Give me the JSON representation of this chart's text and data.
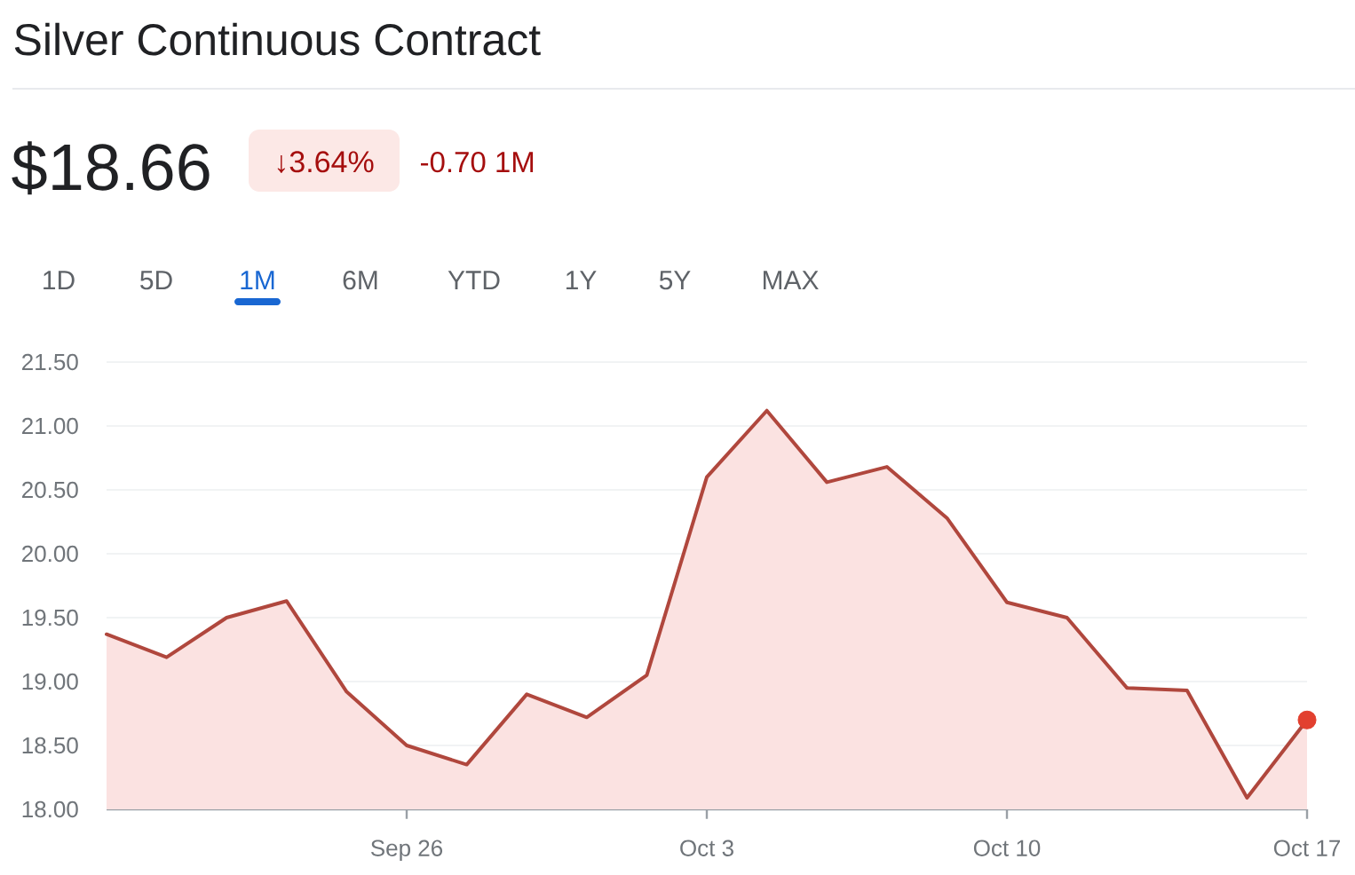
{
  "chart_data": {
    "type": "area",
    "title": "Silver Continuous Contract",
    "subtitle": "$18.66",
    "annotations": [
      "↓3.64%",
      "-0.70 1M",
      "1D",
      "5D",
      "1M",
      "6M",
      "YTD",
      "1Y",
      "5Y",
      "MAX"
    ],
    "categories": [
      null,
      null,
      null,
      null,
      null,
      "Sep 26",
      null,
      null,
      null,
      null,
      "Oct 3",
      null,
      null,
      null,
      null,
      "Oct 10",
      null,
      null,
      null,
      null,
      "Oct 17"
    ],
    "series": [
      {
        "color": "#b0473d",
        "values": [
          19.37,
          19.19,
          19.5,
          19.63,
          18.92,
          18.5,
          18.35,
          18.9,
          18.72,
          19.05,
          20.6,
          21.12,
          20.56,
          20.68,
          20.28,
          19.62,
          19.5,
          18.95,
          18.93,
          18.09,
          18.7
        ]
      },
      {
        "type": "scatter",
        "marker": "circle",
        "color": "#e2402f",
        "values": [
          null,
          null,
          null,
          null,
          null,
          null,
          null,
          null,
          null,
          null,
          null,
          null,
          null,
          null,
          null,
          null,
          null,
          null,
          null,
          null,
          18.7
        ]
      }
    ],
    "ylim": [
      18,
      21.5
    ],
    "yticks": [
      {
        "value": 18,
        "label": "18.00"
      },
      {
        "value": 18.5,
        "label": "18.50"
      },
      {
        "value": 19,
        "label": "19.00"
      },
      {
        "value": 19.5,
        "label": "19.50"
      },
      {
        "value": 20,
        "label": "20.00"
      },
      {
        "value": 20.5,
        "label": "20.50"
      },
      {
        "value": 21,
        "label": "21.00"
      },
      {
        "value": 21.5,
        "label": "21.50"
      }
    ],
    "grid": "y"
  }
}
